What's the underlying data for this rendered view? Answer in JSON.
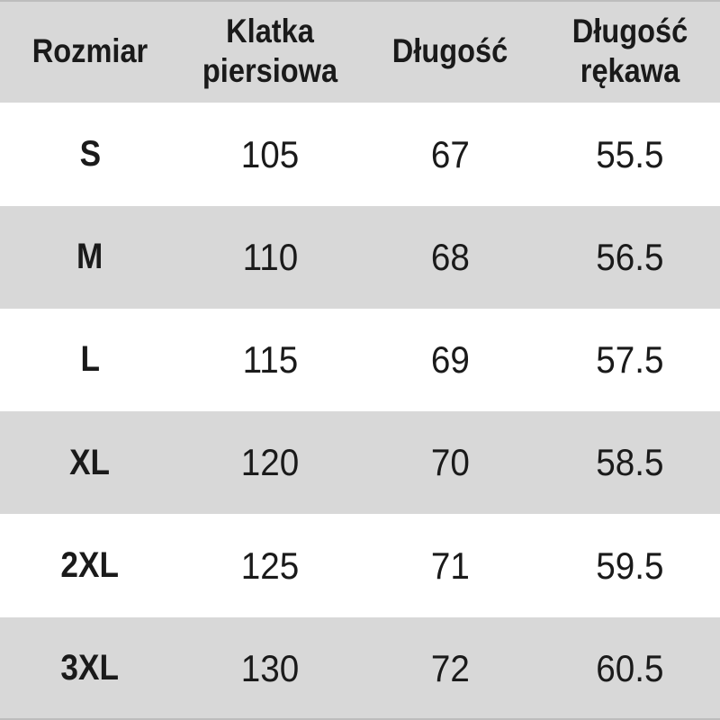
{
  "chart_data": {
    "type": "table",
    "title": "",
    "columns": [
      "Rozmiar",
      "Klatka piersiowa",
      "Długość",
      "Długość rękawa"
    ],
    "rows": [
      [
        "S",
        "105",
        "67",
        "55.5"
      ],
      [
        "M",
        "110",
        "68",
        "56.5"
      ],
      [
        "L",
        "115",
        "69",
        "57.5"
      ],
      [
        "XL",
        "120",
        "70",
        "58.5"
      ],
      [
        "2XL",
        "125",
        "71",
        "59.5"
      ],
      [
        "3XL",
        "130",
        "72",
        "60.5"
      ]
    ],
    "layout": {
      "header_background": "#d8d8d8",
      "row_alt_background": "#d8d8d8",
      "row_base_background": "#ffffff",
      "text_color": "#1a1a1a",
      "edge_line_color": "#bdbdbd",
      "alternating": "header gray, then white/gray alternating"
    }
  }
}
